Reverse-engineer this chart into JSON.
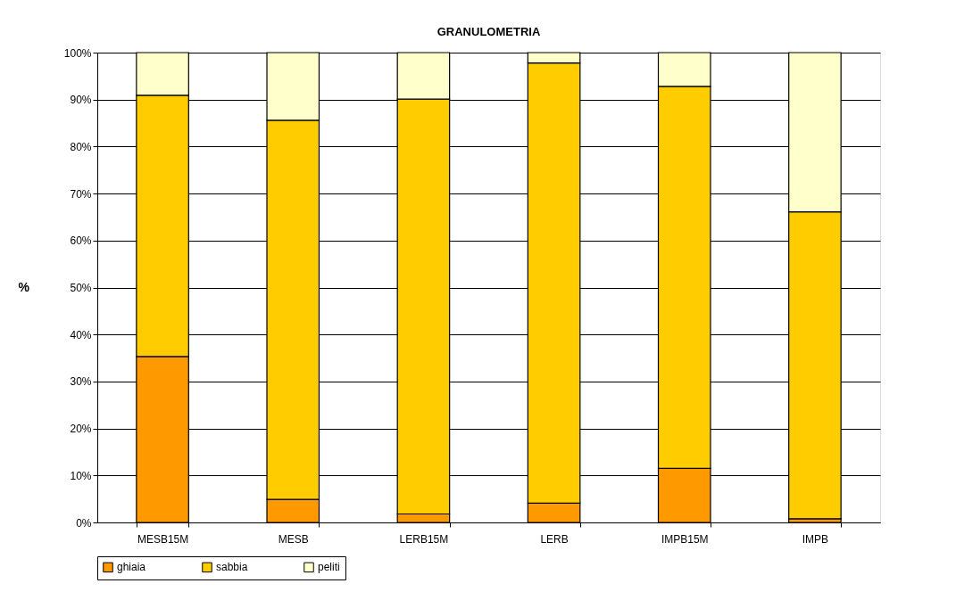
{
  "chart_data": {
    "type": "bar",
    "title": "GRANULOMETRIA",
    "ylabel": "%",
    "stacked": true,
    "categories": [
      "MESB15M",
      "MESB",
      "LERB15M",
      "LERB",
      "IMPB15M",
      "IMPB"
    ],
    "series": [
      {
        "name": "ghiaia",
        "color": "#ff9900",
        "values": [
          35.3,
          4.9,
          1.8,
          4.1,
          11.5,
          0.8
        ]
      },
      {
        "name": "sabbia",
        "color": "#ffcc00",
        "values": [
          55.6,
          80.7,
          88.3,
          93.7,
          81.3,
          65.3
        ]
      },
      {
        "name": "peliti",
        "color": "#ffffcc",
        "values": [
          9.1,
          14.4,
          9.9,
          2.2,
          7.2,
          33.9
        ]
      }
    ],
    "ylim": [
      0,
      100
    ],
    "yticks": [
      {
        "value": 0,
        "label": "0%"
      },
      {
        "value": 10,
        "label": "10%"
      },
      {
        "value": 20,
        "label": "20%"
      },
      {
        "value": 30,
        "label": "30%"
      },
      {
        "value": 40,
        "label": "40%"
      },
      {
        "value": 50,
        "label": "50%"
      },
      {
        "value": 60,
        "label": "60%"
      },
      {
        "value": 70,
        "label": "70%"
      },
      {
        "value": 80,
        "label": "80%"
      },
      {
        "value": 90,
        "label": "90%"
      },
      {
        "value": 100,
        "label": "100%"
      }
    ],
    "grid": "y",
    "legend": "bottom"
  }
}
